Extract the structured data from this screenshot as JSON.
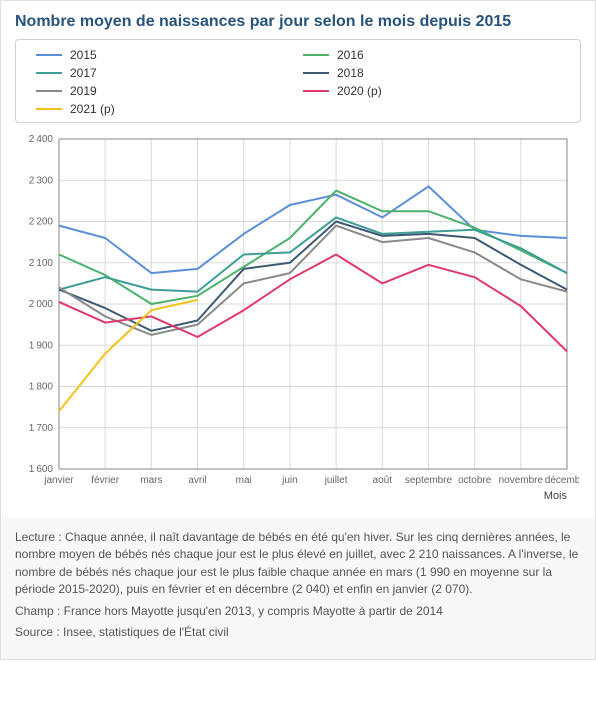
{
  "title": "Nombre moyen de naissances par jour selon le mois depuis 2015",
  "chart": {
    "type": "line",
    "months": [
      "janvier",
      "février",
      "mars",
      "avril",
      "mai",
      "juin",
      "juillet",
      "août",
      "septembre",
      "octobre",
      "novembre",
      "décembre"
    ],
    "x_axis_title": "Mois",
    "ylim": [
      1600,
      2400
    ],
    "ytick_step": 100,
    "background_color": "#ffffff",
    "grid_color": "#d9d9d9",
    "axis_color": "#888888",
    "line_width": 2,
    "tick_font_size": 10,
    "series": [
      {
        "name": "2015",
        "color": "#5b8fd6",
        "values": [
          2190,
          2160,
          2075,
          2085,
          2170,
          2240,
          2265,
          2210,
          2285,
          2180,
          2165,
          2160
        ]
      },
      {
        "name": "2016",
        "color": "#4cb26c",
        "values": [
          2120,
          2070,
          2000,
          2020,
          2090,
          2160,
          2275,
          2225,
          2225,
          2185,
          2130,
          2075
        ]
      },
      {
        "name": "2017",
        "color": "#3f9c99",
        "values": [
          2035,
          2065,
          2035,
          2030,
          2120,
          2125,
          2210,
          2170,
          2175,
          2180,
          2135,
          2075
        ]
      },
      {
        "name": "2018",
        "color": "#3e5a73",
        "values": [
          2035,
          1990,
          1935,
          1960,
          2085,
          2100,
          2200,
          2165,
          2170,
          2160,
          2095,
          2035
        ]
      },
      {
        "name": "2019",
        "color": "#8a8a8a",
        "values": [
          2040,
          1970,
          1925,
          1950,
          2050,
          2075,
          2190,
          2150,
          2160,
          2125,
          2060,
          2030
        ]
      },
      {
        "name": "2020 (p)",
        "color": "#e03a6a",
        "values": [
          2005,
          1955,
          1970,
          1920,
          1985,
          2060,
          2120,
          2050,
          2095,
          2065,
          1995,
          1885
        ]
      },
      {
        "name": "2021 (p)",
        "color": "#f2c21a",
        "values": [
          1740,
          1880,
          1985,
          2010,
          null,
          null,
          null,
          null,
          null,
          null,
          null,
          null
        ]
      }
    ]
  },
  "footer": {
    "lecture": "Lecture : Chaque année, il naît davantage de bébés en été qu'en hiver. Sur les cinq dernières années, le nombre moyen de bébés nés chaque jour est le plus élevé en juillet, avec 2 210 naissances. A l'inverse, le nombre de bébés nés chaque jour est le plus faible chaque année en mars (1 990 en moyenne sur la période 2015-2020), puis en février et en décembre (2 040) et enfin en janvier (2 070).",
    "champ": "Champ : France hors Mayotte jusqu'en 2013, y compris Mayotte à partir de 2014",
    "source": "Source : Insee, statistiques de l'État civil"
  }
}
